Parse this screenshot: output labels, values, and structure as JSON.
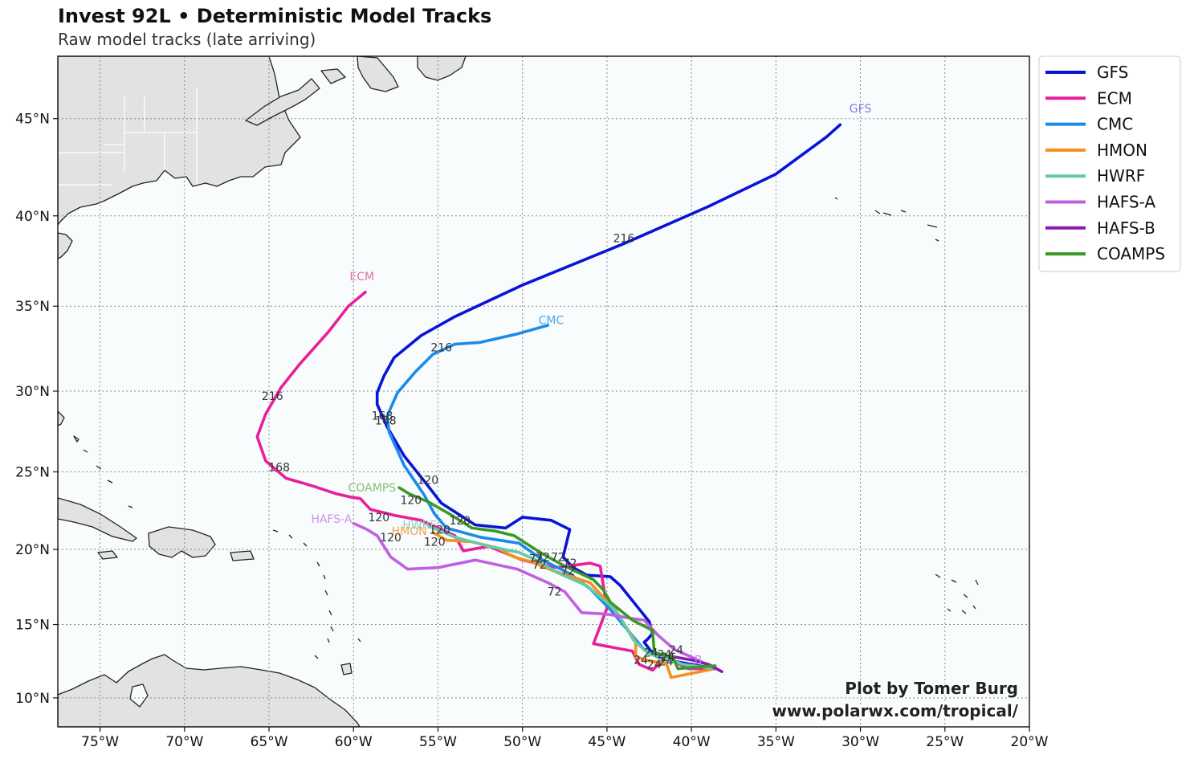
{
  "header": {
    "title": "Invest 92L • Deterministic Model Tracks",
    "subtitle": "Raw model tracks (late arriving)"
  },
  "credit": {
    "line1": "Plot by Tomer Burg",
    "line2": "www.polarwx.com/tropical/"
  },
  "chart_data": {
    "type": "line",
    "map_extent": {
      "lon": [
        -77.5,
        -20
      ],
      "lat": [
        8,
        48
      ]
    },
    "grid": true,
    "legend_position": "right, outside, top",
    "lon_ticks": [
      {
        "value": -75,
        "label": "75°W"
      },
      {
        "value": -70,
        "label": "70°W"
      },
      {
        "value": -65,
        "label": "65°W"
      },
      {
        "value": -60,
        "label": "60°W"
      },
      {
        "value": -55,
        "label": "55°W"
      },
      {
        "value": -50,
        "label": "50°W"
      },
      {
        "value": -45,
        "label": "45°W"
      },
      {
        "value": -40,
        "label": "40°W"
      },
      {
        "value": -35,
        "label": "35°W"
      },
      {
        "value": -30,
        "label": "30°W"
      },
      {
        "value": -25,
        "label": "25°W"
      },
      {
        "value": -20,
        "label": "20°W"
      }
    ],
    "lat_ticks": [
      {
        "value": 10,
        "label": "10°N"
      },
      {
        "value": 15,
        "label": "15°N"
      },
      {
        "value": 20,
        "label": "20°N"
      },
      {
        "value": 25,
        "label": "25°N"
      },
      {
        "value": 30,
        "label": "30°N"
      },
      {
        "value": 35,
        "label": "35°N"
      },
      {
        "value": 40,
        "label": "40°N"
      },
      {
        "value": 45,
        "label": "45°N"
      }
    ],
    "series": [
      {
        "name": "GFS",
        "color": "#0a14d4",
        "label_color": "#7c7ce0",
        "points": [
          [
            -38.6,
            12.0
          ],
          [
            -41.0,
            12.5
          ],
          [
            -42.4,
            13.2
          ],
          [
            -42.8,
            13.8
          ],
          [
            -42.6,
            14.0
          ],
          [
            -42.3,
            14.4
          ],
          [
            -42.5,
            15.2
          ],
          [
            -44.2,
            17.6
          ],
          [
            -44.8,
            18.2
          ],
          [
            -46.2,
            18.3
          ],
          [
            -47.0,
            18.8
          ],
          [
            -47.6,
            19.5
          ],
          [
            -47.2,
            21.3
          ],
          [
            -48.3,
            21.9
          ],
          [
            -50.0,
            22.1
          ],
          [
            -51.0,
            21.4
          ],
          [
            -52.8,
            21.6
          ],
          [
            -54.8,
            23.0
          ],
          [
            -55.8,
            24.4
          ],
          [
            -57.0,
            26.0
          ],
          [
            -58.0,
            27.8
          ],
          [
            -58.6,
            29.2
          ],
          [
            -58.6,
            29.9
          ],
          [
            -58.2,
            30.9
          ],
          [
            -57.6,
            32.0
          ],
          [
            -56.0,
            33.3
          ],
          [
            -54.0,
            34.4
          ],
          [
            -50.0,
            36.2
          ],
          [
            -44.0,
            38.5
          ],
          [
            -39.0,
            40.5
          ],
          [
            -35.0,
            42.2
          ],
          [
            -32.0,
            44.1
          ],
          [
            -31.2,
            44.7
          ]
        ],
        "end_label": "GFS",
        "end_label_lonlat": [
          -30.0,
          45.5
        ],
        "hour_labels": [
          {
            "text": "216",
            "lonlat": [
              -44.0,
              38.8
            ]
          },
          {
            "text": "168",
            "lonlat": [
              -58.3,
              28.5
            ]
          },
          {
            "text": "120",
            "lonlat": [
              -55.6,
              24.5
            ]
          },
          {
            "text": "72",
            "lonlat": [
              -47.9,
              19.5
            ]
          },
          {
            "text": "24",
            "lonlat": [
              -42.4,
              13.1
            ]
          }
        ]
      },
      {
        "name": "ECM",
        "color": "#e8209a",
        "label_color": "#e070a8",
        "points": [
          [
            -38.6,
            12.0
          ],
          [
            -40.2,
            12.0
          ],
          [
            -41.5,
            12.8
          ],
          [
            -42.3,
            11.9
          ],
          [
            -43.1,
            12.3
          ],
          [
            -43.5,
            13.2
          ],
          [
            -45.8,
            13.7
          ],
          [
            -45.0,
            16.1
          ],
          [
            -45.4,
            18.9
          ],
          [
            -46.0,
            19.1
          ],
          [
            -48.0,
            18.8
          ],
          [
            -50.0,
            19.3
          ],
          [
            -52.0,
            20.2
          ],
          [
            -53.5,
            19.9
          ],
          [
            -54.0,
            20.9
          ],
          [
            -56.0,
            21.9
          ],
          [
            -57.5,
            22.2
          ],
          [
            -59.0,
            22.6
          ],
          [
            -59.6,
            23.3
          ],
          [
            -60.2,
            23.4
          ],
          [
            -61.0,
            23.6
          ],
          [
            -62.4,
            24.1
          ],
          [
            -64.0,
            24.6
          ],
          [
            -65.2,
            25.7
          ],
          [
            -65.7,
            27.2
          ],
          [
            -65.2,
            28.6
          ],
          [
            -64.3,
            30.2
          ],
          [
            -63.2,
            31.6
          ],
          [
            -61.5,
            33.5
          ],
          [
            -60.3,
            35.0
          ],
          [
            -59.3,
            35.8
          ]
        ],
        "end_label": "ECM",
        "end_label_lonlat": [
          -59.5,
          36.7
        ],
        "hour_labels": [
          {
            "text": "216",
            "lonlat": [
              -64.8,
              29.7
            ]
          },
          {
            "text": "168",
            "lonlat": [
              -64.4,
              25.3
            ]
          },
          {
            "text": "120",
            "lonlat": [
              -58.5,
              22.1
            ]
          },
          {
            "text": "72",
            "lonlat": [
              -47.2,
              19.1
            ]
          },
          {
            "text": "24",
            "lonlat": [
              -42.2,
              12.3
            ]
          }
        ]
      },
      {
        "name": "CMC",
        "color": "#1e8ae8",
        "label_color": "#4ca8ee",
        "points": [
          [
            -38.6,
            12.0
          ],
          [
            -40.5,
            12.3
          ],
          [
            -42.0,
            12.8
          ],
          [
            -42.8,
            13.3
          ],
          [
            -44.8,
            16.0
          ],
          [
            -46.0,
            17.4
          ],
          [
            -47.2,
            18.4
          ],
          [
            -48.8,
            19.3
          ],
          [
            -50.2,
            20.4
          ],
          [
            -52.5,
            20.8
          ],
          [
            -54.5,
            21.4
          ],
          [
            -55.2,
            22.3
          ],
          [
            -55.8,
            23.5
          ],
          [
            -57.0,
            25.4
          ],
          [
            -57.9,
            27.5
          ],
          [
            -58.0,
            28.5
          ],
          [
            -57.4,
            29.9
          ],
          [
            -56.3,
            31.2
          ],
          [
            -55.3,
            32.2
          ],
          [
            -54.0,
            32.8
          ],
          [
            -52.5,
            32.9
          ],
          [
            -50.3,
            33.4
          ],
          [
            -48.5,
            33.9
          ]
        ],
        "end_label": "CMC",
        "end_label_lonlat": [
          -48.3,
          34.2
        ],
        "hour_labels": [
          {
            "text": "216",
            "lonlat": [
              -54.8,
              32.6
            ]
          },
          {
            "text": "168",
            "lonlat": [
              -58.1,
              28.2
            ]
          },
          {
            "text": "120",
            "lonlat": [
              -53.7,
              21.9
            ]
          },
          {
            "text": "72",
            "lonlat": [
              -48.8,
              19.5
            ]
          },
          {
            "text": "24",
            "lonlat": [
              -41.6,
              13.0
            ]
          }
        ]
      },
      {
        "name": "HMON",
        "color": "#f5901e",
        "label_color": "#f5a050",
        "points": [
          [
            -38.6,
            12.0
          ],
          [
            -41.2,
            11.4
          ],
          [
            -41.5,
            12.4
          ],
          [
            -42.4,
            12.5
          ],
          [
            -43.3,
            12.8
          ],
          [
            -43.3,
            13.8
          ],
          [
            -44.4,
            15.8
          ],
          [
            -46.0,
            17.8
          ],
          [
            -48.2,
            18.6
          ],
          [
            -49.5,
            19.2
          ],
          [
            -50.5,
            19.5
          ],
          [
            -51.5,
            20.1
          ],
          [
            -53.0,
            20.5
          ],
          [
            -54.5,
            20.6
          ],
          [
            -55.3,
            21.1
          ]
        ],
        "end_label": "HMON",
        "end_label_lonlat": [
          -56.7,
          21.2
        ],
        "hour_labels": [
          {
            "text": "120",
            "lonlat": [
              -55.2,
              20.5
            ]
          },
          {
            "text": "72",
            "lonlat": [
              -49.2,
              19.4
            ]
          },
          {
            "text": "24",
            "lonlat": [
              -43.0,
              12.6
            ]
          }
        ]
      },
      {
        "name": "HWRF",
        "color": "#66c9a8",
        "label_color": "#8fd4bc",
        "points": [
          [
            -38.6,
            12.0
          ],
          [
            -40.5,
            12.3
          ],
          [
            -41.5,
            12.7
          ],
          [
            -42.5,
            13.0
          ],
          [
            -43.4,
            13.9
          ],
          [
            -44.5,
            16.0
          ],
          [
            -46.2,
            17.6
          ],
          [
            -48.0,
            18.5
          ],
          [
            -49.0,
            19.2
          ],
          [
            -50.2,
            19.8
          ],
          [
            -52.0,
            20.2
          ],
          [
            -54.0,
            20.8
          ],
          [
            -55.5,
            21.5
          ]
        ],
        "end_label": "HWRF",
        "end_label_lonlat": [
          -56.1,
          21.6
        ],
        "hour_labels": [
          {
            "text": "120",
            "lonlat": [
              -54.9,
              21.3
            ]
          },
          {
            "text": "72",
            "lonlat": [
              -49.0,
              19.0
            ]
          },
          {
            "text": "24",
            "lonlat": [
              -41.5,
              12.5
            ]
          }
        ]
      },
      {
        "name": "HAFS-A",
        "color": "#c060e0",
        "label_color": "#d090ea",
        "points": [
          [
            -38.6,
            12.0
          ],
          [
            -40.0,
            12.8
          ],
          [
            -41.0,
            13.3
          ],
          [
            -42.0,
            14.3
          ],
          [
            -42.8,
            15.3
          ],
          [
            -43.5,
            15.4
          ],
          [
            -45.0,
            15.7
          ],
          [
            -46.5,
            15.8
          ],
          [
            -47.5,
            17.2
          ],
          [
            -48.5,
            17.8
          ],
          [
            -50.3,
            18.7
          ],
          [
            -52.8,
            19.3
          ],
          [
            -55.0,
            18.8
          ],
          [
            -56.8,
            18.7
          ],
          [
            -57.8,
            19.5
          ],
          [
            -58.6,
            20.9
          ],
          [
            -59.2,
            21.3
          ],
          [
            -60.0,
            21.7
          ]
        ],
        "end_label": "HAFS-A",
        "end_label_lonlat": [
          -61.3,
          22.0
        ],
        "hour_labels": [
          {
            "text": "120",
            "lonlat": [
              -57.8,
              20.8
            ]
          },
          {
            "text": "72",
            "lonlat": [
              -48.1,
              17.2
            ]
          },
          {
            "text": "24",
            "lonlat": [
              -40.9,
              13.3
            ]
          }
        ]
      },
      {
        "name": "HAFS-B",
        "color": "#8a1bb0",
        "label_color": "#c080e0",
        "points": [
          [
            -38.2,
            11.8
          ],
          [
            -39.0,
            12.3
          ],
          [
            -40.0,
            12.6
          ],
          [
            -41.0,
            12.8
          ],
          [
            -42.0,
            13.0
          ]
        ],
        "end_label": "B",
        "end_label_lonlat": [
          -39.6,
          12.6
        ],
        "hour_labels": []
      },
      {
        "name": "COAMPS",
        "color": "#3a9a28",
        "label_color": "#88c070",
        "points": [
          [
            -38.6,
            12.2
          ],
          [
            -40.8,
            12.0
          ],
          [
            -41.1,
            12.8
          ],
          [
            -42.2,
            13.1
          ],
          [
            -42.3,
            14.6
          ],
          [
            -43.5,
            15.3
          ],
          [
            -44.8,
            16.5
          ],
          [
            -45.2,
            17.3
          ],
          [
            -45.8,
            18.0
          ],
          [
            -47.5,
            18.9
          ],
          [
            -48.8,
            19.7
          ],
          [
            -49.8,
            20.4
          ],
          [
            -50.5,
            20.9
          ],
          [
            -51.6,
            21.2
          ],
          [
            -53.0,
            21.4
          ],
          [
            -54.3,
            22.3
          ],
          [
            -55.6,
            23.1
          ],
          [
            -56.7,
            23.6
          ],
          [
            -57.3,
            24.0
          ]
        ],
        "end_label": "COAMPS",
        "end_label_lonlat": [
          -58.9,
          24.0
        ],
        "hour_labels": [
          {
            "text": "120",
            "lonlat": [
              -56.6,
              23.2
            ]
          },
          {
            "text": "72",
            "lonlat": [
              -47.3,
              18.6
            ]
          },
          {
            "text": "24",
            "lonlat": [
              -41.4,
              12.8
            ]
          }
        ]
      }
    ]
  }
}
